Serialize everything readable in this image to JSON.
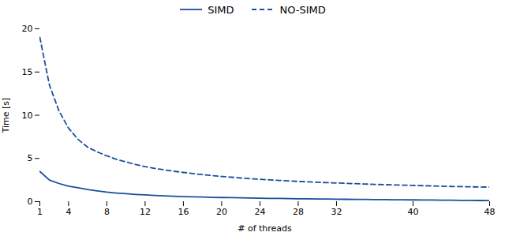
{
  "chart_data": {
    "type": "line",
    "x": [
      1,
      2,
      3,
      4,
      5,
      6,
      7,
      8,
      9,
      10,
      11,
      12,
      13,
      14,
      15,
      16,
      17,
      18,
      19,
      20,
      21,
      22,
      23,
      24,
      25,
      26,
      27,
      28,
      29,
      30,
      31,
      32,
      33,
      34,
      35,
      36,
      37,
      38,
      39,
      40,
      41,
      42,
      43,
      44,
      45,
      46,
      47,
      48
    ],
    "series": [
      {
        "name": "SIMD",
        "color": "#1a4f9c",
        "line_style": "solid",
        "values": [
          3.5,
          2.5,
          2.1,
          1.8,
          1.6,
          1.4,
          1.25,
          1.1,
          1.0,
          0.92,
          0.84,
          0.78,
          0.72,
          0.67,
          0.63,
          0.59,
          0.56,
          0.53,
          0.5,
          0.48,
          0.46,
          0.44,
          0.42,
          0.4,
          0.38,
          0.37,
          0.355,
          0.34,
          0.325,
          0.31,
          0.3,
          0.29,
          0.275,
          0.265,
          0.255,
          0.245,
          0.235,
          0.225,
          0.215,
          0.205,
          0.195,
          0.185,
          0.175,
          0.165,
          0.155,
          0.145,
          0.135,
          0.12
        ]
      },
      {
        "name": "NO-SIMD",
        "color": "#1a4f9c",
        "line_style": "dashed",
        "values": [
          19.0,
          13.5,
          10.5,
          8.5,
          7.2,
          6.3,
          5.75,
          5.3,
          4.9,
          4.6,
          4.3,
          4.05,
          3.85,
          3.68,
          3.52,
          3.38,
          3.25,
          3.13,
          3.02,
          2.92,
          2.83,
          2.74,
          2.66,
          2.59,
          2.52,
          2.46,
          2.4,
          2.34,
          2.29,
          2.24,
          2.2,
          2.16,
          2.12,
          2.08,
          2.04,
          2.0,
          1.97,
          1.94,
          1.91,
          1.88,
          1.85,
          1.82,
          1.79,
          1.76,
          1.74,
          1.72,
          1.7,
          1.68
        ]
      }
    ],
    "xlabel": "# of threads",
    "ylabel": "Time [s]",
    "xlim": [
      1,
      48
    ],
    "ylim": [
      0,
      20
    ],
    "xticks": [
      1,
      4,
      8,
      12,
      16,
      20,
      24,
      28,
      32,
      40,
      48
    ],
    "yticks": [
      0,
      5,
      10,
      15,
      20
    ],
    "legend": "top"
  }
}
